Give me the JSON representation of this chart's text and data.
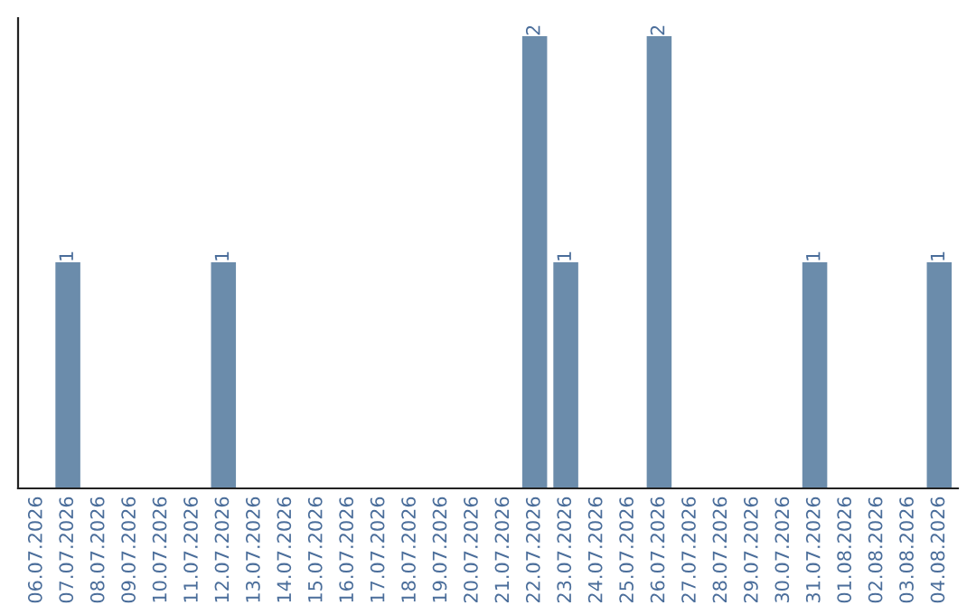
{
  "chart_data": {
    "type": "bar",
    "categories": [
      "06.07.2026",
      "07.07.2026",
      "08.07.2026",
      "09.07.2026",
      "10.07.2026",
      "11.07.2026",
      "12.07.2026",
      "13.07.2026",
      "14.07.2026",
      "15.07.2026",
      "16.07.2026",
      "17.07.2026",
      "18.07.2026",
      "19.07.2026",
      "20.07.2026",
      "21.07.2026",
      "22.07.2026",
      "23.07.2026",
      "24.07.2026",
      "25.07.2026",
      "26.07.2026",
      "27.07.2026",
      "28.07.2026",
      "29.07.2026",
      "30.07.2026",
      "31.07.2026",
      "01.08.2026",
      "02.08.2026",
      "03.08.2026",
      "04.08.2026"
    ],
    "values": [
      0,
      1,
      0,
      0,
      0,
      0,
      1,
      0,
      0,
      0,
      0,
      0,
      0,
      0,
      0,
      0,
      2,
      1,
      0,
      0,
      2,
      0,
      0,
      0,
      0,
      1,
      0,
      0,
      0,
      1
    ],
    "value_labels": [
      null,
      "1",
      null,
      null,
      null,
      null,
      "1",
      null,
      null,
      null,
      null,
      null,
      null,
      null,
      null,
      null,
      "2",
      "1",
      null,
      null,
      "2",
      null,
      null,
      null,
      null,
      "1",
      null,
      null,
      null,
      "1"
    ],
    "color": "#6b8cab",
    "tick_labels": "x",
    "grid": false,
    "legend": false
  }
}
